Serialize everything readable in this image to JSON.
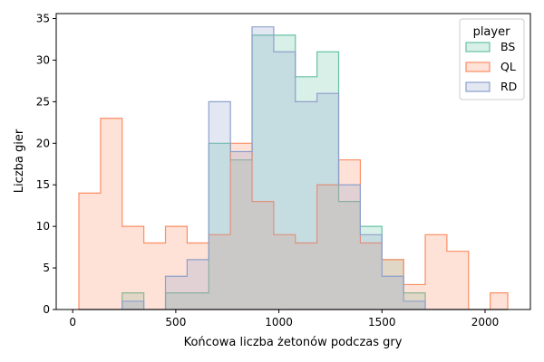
{
  "chart_data": {
    "type": "histogram-step",
    "xlabel": "Końcowa liczba żetonów podczas gry",
    "ylabel": "Liczba gier",
    "xlim": [
      -80,
      2220
    ],
    "ylim": [
      0,
      35.6
    ],
    "xticks": [
      0,
      500,
      1000,
      1500,
      2000
    ],
    "yticks": [
      0,
      5,
      10,
      15,
      20,
      25,
      30,
      35
    ],
    "grid": false,
    "legend": {
      "title": "player",
      "placement": "top-right"
    },
    "bins": [
      30,
      135,
      240,
      345,
      450,
      555,
      660,
      765,
      870,
      975,
      1080,
      1185,
      1290,
      1395,
      1500,
      1605,
      1710,
      1815,
      1920,
      2025,
      2110
    ],
    "series": [
      {
        "name": "BS",
        "color": "#66c2a5",
        "fill": "rgba(102,194,165,0.25)",
        "values": [
          0,
          0,
          2,
          0,
          2,
          2,
          20,
          18,
          33,
          33,
          28,
          31,
          13,
          10,
          6,
          2,
          0,
          0,
          0,
          0
        ]
      },
      {
        "name": "QL",
        "color": "#fc8d62",
        "fill": "rgba(252,141,98,0.25)",
        "values": [
          14,
          23,
          10,
          8,
          10,
          8,
          9,
          20,
          13,
          9,
          8,
          15,
          18,
          8,
          6,
          3,
          9,
          7,
          0,
          2
        ]
      },
      {
        "name": "RD",
        "color": "#8da0cb",
        "fill": "rgba(141,160,203,0.25)",
        "values": [
          0,
          0,
          1,
          0,
          4,
          6,
          25,
          19,
          34,
          31,
          25,
          26,
          15,
          9,
          4,
          1,
          0,
          0,
          0,
          0
        ]
      }
    ]
  }
}
